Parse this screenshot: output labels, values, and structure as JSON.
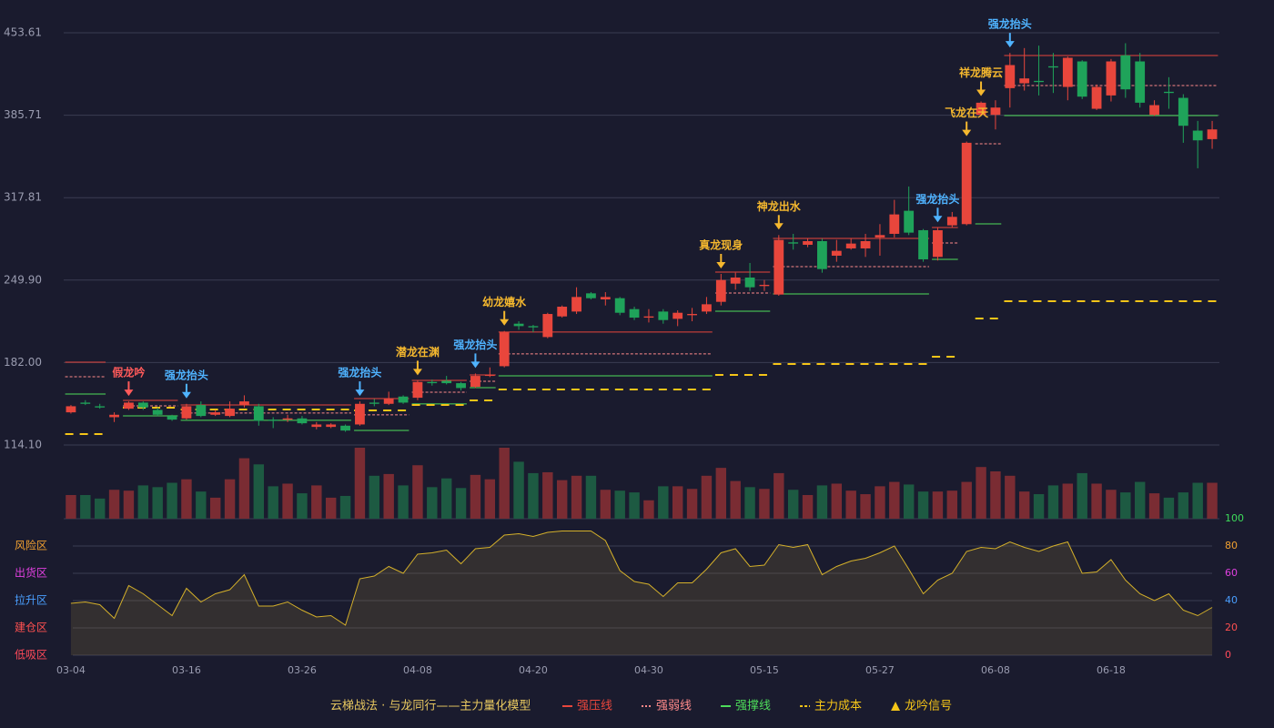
{
  "chart_data": {
    "type": "candlestick",
    "categories": [
      "03-04",
      null,
      null,
      null,
      null,
      null,
      null,
      null,
      "03-16",
      null,
      null,
      null,
      null,
      null,
      null,
      null,
      "03-26",
      null,
      null,
      null,
      null,
      null,
      null,
      null,
      "04-08",
      null,
      null,
      null,
      null,
      null,
      null,
      null,
      "04-20",
      null,
      null,
      null,
      null,
      null,
      null,
      null,
      "04-30",
      null,
      null,
      null,
      null,
      null,
      null,
      null,
      "05-15",
      null,
      null,
      null,
      null,
      null,
      null,
      null,
      "05-27",
      null,
      null,
      null,
      null,
      null,
      null,
      null,
      "06-08",
      null,
      null,
      null,
      null,
      null,
      null,
      null,
      "06-18",
      null,
      null,
      null,
      null,
      null,
      null,
      null
    ],
    "open": [
      141,
      149,
      146,
      137,
      144,
      149,
      143,
      138,
      136,
      147,
      139,
      138,
      147,
      146,
      135,
      135,
      136,
      129,
      129,
      130,
      131,
      149,
      148,
      154,
      153,
      166,
      167,
      165,
      162,
      171,
      179,
      214,
      212,
      203,
      220,
      224,
      239,
      234,
      235,
      226,
      219,
      224,
      218,
      221,
      224,
      232,
      247,
      252,
      245,
      238,
      281,
      279,
      282,
      270,
      276,
      276,
      285,
      288,
      307,
      291,
      269,
      295,
      296,
      386,
      386,
      408,
      412,
      414,
      426,
      409,
      430,
      391,
      402,
      435,
      430,
      386,
      405,
      400,
      373,
      366
    ],
    "close": [
      146,
      148,
      145,
      139,
      149,
      145,
      139,
      135,
      146,
      138,
      141,
      144,
      150,
      134,
      134,
      136,
      132,
      131,
      131,
      126,
      148,
      148,
      152,
      149,
      166,
      165,
      165,
      161,
      171,
      172,
      207,
      212,
      211,
      222,
      228,
      236,
      235,
      236,
      223,
      219,
      220,
      217,
      223,
      222,
      230,
      250,
      252,
      244,
      246,
      283,
      280,
      282,
      259,
      274,
      280,
      282,
      287,
      304,
      289,
      267,
      291,
      302,
      363,
      396,
      392,
      427,
      416,
      413,
      425,
      433,
      401,
      409,
      430,
      407,
      396,
      394,
      404,
      377,
      365,
      374
    ],
    "high": [
      147,
      151,
      148,
      141,
      150,
      150,
      145,
      139,
      148,
      150,
      143,
      150,
      155,
      148,
      137,
      139,
      138,
      133,
      132,
      131,
      150,
      152,
      158,
      155,
      167,
      168,
      171,
      166,
      173,
      178,
      208,
      216,
      213,
      223,
      229,
      244,
      240,
      240,
      236,
      228,
      226,
      226,
      225,
      227,
      236,
      255,
      256,
      264,
      250,
      287,
      288,
      284,
      284,
      283,
      284,
      288,
      296,
      316,
      327,
      292,
      293,
      306,
      364,
      397,
      398,
      437,
      441,
      443,
      437,
      434,
      431,
      411,
      432,
      445,
      437,
      398,
      417,
      403,
      381,
      381
    ],
    "low": [
      140,
      147,
      144,
      133,
      143,
      143,
      138,
      134,
      135,
      137,
      138,
      137,
      145,
      130,
      128,
      133,
      131,
      127,
      128,
      125,
      130,
      146,
      147,
      148,
      151,
      163,
      164,
      159,
      161,
      170,
      178,
      209,
      207,
      202,
      219,
      222,
      234,
      229,
      221,
      217,
      215,
      214,
      212,
      216,
      222,
      229,
      242,
      241,
      241,
      237,
      275,
      277,
      256,
      265,
      275,
      269,
      270,
      285,
      287,
      265,
      266,
      293,
      295,
      385,
      374,
      392,
      406,
      402,
      404,
      398,
      399,
      390,
      397,
      400,
      392,
      385,
      391,
      363,
      342,
      358
    ],
    "up_color": "#e8463c",
    "down_color": "#1fa35a",
    "volume": [
      27,
      27,
      23,
      33,
      32,
      38,
      36,
      41,
      45,
      31,
      24,
      45,
      69,
      62,
      37,
      40,
      29,
      38,
      24,
      26,
      81,
      49,
      51,
      38,
      61,
      36,
      46,
      35,
      50,
      45,
      81,
      65,
      52,
      53,
      44,
      49,
      49,
      33,
      32,
      30,
      21,
      37,
      37,
      34,
      49,
      58,
      43,
      36,
      34,
      52,
      33,
      27,
      38,
      40,
      32,
      28,
      37,
      42,
      39,
      31,
      31,
      32,
      42,
      59,
      54,
      49,
      31,
      28,
      38,
      40,
      52,
      40,
      33,
      30,
      42,
      29,
      24,
      30,
      41,
      41
    ],
    "volume_up_color": "#7a2c33",
    "volume_down_color": "#1d5a42",
    "ylim": [
      114.1,
      453.61
    ],
    "yticks": [
      {
        "value": 114.1,
        "label": "114.10"
      },
      {
        "value": 182.0,
        "label": "182.00"
      },
      {
        "value": 249.9,
        "label": "249.90"
      },
      317.81,
      385.71,
      453.61
    ],
    "grid": true,
    "levels": [
      {
        "name": "强压线",
        "color": "#e8463c",
        "style": "solid",
        "segments": [
          {
            "from": 0,
            "to": 2,
            "value": 182.3
          },
          {
            "from": 4,
            "to": 7,
            "value": 150.8
          },
          {
            "from": 8,
            "to": 19,
            "value": 147.1
          },
          {
            "from": 20,
            "to": 23,
            "value": 152.3
          },
          {
            "from": 24,
            "to": 27,
            "value": 167.3
          },
          {
            "from": 28,
            "to": 29,
            "value": 171.8
          },
          {
            "from": 30,
            "to": 44,
            "value": 207.1
          },
          {
            "from": 45,
            "to": 48,
            "value": 256.5
          },
          {
            "from": 49,
            "to": 59,
            "value": 284.2
          },
          {
            "from": 60,
            "to": 61,
            "value": 293.2
          },
          {
            "from": 65,
            "to": 79,
            "value": 434.9
          }
        ]
      },
      {
        "name": "强弱线",
        "color": "#ff8a8a",
        "style": "dotted",
        "segments": [
          {
            "from": 0,
            "to": 2,
            "value": 170.3
          },
          {
            "from": 4,
            "to": 7,
            "value": 146.3
          },
          {
            "from": 8,
            "to": 19,
            "value": 140.4
          },
          {
            "from": 20,
            "to": 23,
            "value": 138.9
          },
          {
            "from": 24,
            "to": 27,
            "value": 157.6
          },
          {
            "from": 28,
            "to": 29,
            "value": 166.6
          },
          {
            "from": 30,
            "to": 44,
            "value": 189.1
          },
          {
            "from": 45,
            "to": 48,
            "value": 239.3
          },
          {
            "from": 49,
            "to": 59,
            "value": 261.0
          },
          {
            "from": 60,
            "to": 61,
            "value": 280.5
          },
          {
            "from": 63,
            "to": 64,
            "value": 362.2
          },
          {
            "from": 65,
            "to": 79,
            "value": 410.1
          }
        ]
      },
      {
        "name": "强撑线",
        "color": "#4ddc5a",
        "style": "solid",
        "segments": [
          {
            "from": 0,
            "to": 2,
            "value": 156.1
          },
          {
            "from": 4,
            "to": 7,
            "value": 138.1
          },
          {
            "from": 8,
            "to": 19,
            "value": 134.4
          },
          {
            "from": 20,
            "to": 23,
            "value": 126.1
          },
          {
            "from": 24,
            "to": 27,
            "value": 147.9
          },
          {
            "from": 28,
            "to": 29,
            "value": 161.3
          },
          {
            "from": 30,
            "to": 44,
            "value": 171.1
          },
          {
            "from": 45,
            "to": 48,
            "value": 224.3
          },
          {
            "from": 49,
            "to": 59,
            "value": 238.5
          },
          {
            "from": 60,
            "to": 61,
            "value": 267.0
          },
          {
            "from": 63,
            "to": 64,
            "value": 296.2
          },
          {
            "from": 65,
            "to": 79,
            "value": 385.4
          }
        ]
      },
      {
        "name": "主力成本",
        "color": "#f5c518",
        "style": "dashed",
        "segments": [
          {
            "from": 0,
            "to": 2,
            "value": 123.1
          },
          {
            "from": 4,
            "to": 7,
            "value": 144.8
          },
          {
            "from": 8,
            "to": 19,
            "value": 143.3
          },
          {
            "from": 20,
            "to": 23,
            "value": 142.6
          },
          {
            "from": 24,
            "to": 27,
            "value": 147.1
          },
          {
            "from": 28,
            "to": 29,
            "value": 150.8
          },
          {
            "from": 30,
            "to": 44,
            "value": 159.8
          },
          {
            "from": 45,
            "to": 48,
            "value": 171.8
          },
          {
            "from": 49,
            "to": 59,
            "value": 180.8
          },
          {
            "from": 60,
            "to": 61,
            "value": 186.8
          },
          {
            "from": 63,
            "to": 64,
            "value": 218.3
          },
          {
            "from": 65,
            "to": 79,
            "value": 232.5
          }
        ]
      }
    ],
    "signals": [
      {
        "label": "假龙吟",
        "color": "#ff5a5a",
        "candle": 4
      },
      {
        "label": "强龙抬头",
        "color": "#4fb3ff",
        "candle": 8
      },
      {
        "label": "强龙抬头",
        "color": "#4fb3ff",
        "candle": 20
      },
      {
        "label": "潜龙在渊",
        "color": "#f5b82e",
        "candle": 24
      },
      {
        "label": "强龙抬头",
        "color": "#4fb3ff",
        "candle": 28
      },
      {
        "label": "幼龙嬉水",
        "color": "#f5b82e",
        "candle": 30
      },
      {
        "label": "真龙现身",
        "color": "#f5b82e",
        "candle": 45
      },
      {
        "label": "神龙出水",
        "color": "#f5b82e",
        "candle": 49
      },
      {
        "label": "强龙抬头",
        "color": "#4fb3ff",
        "candle": 60
      },
      {
        "label": "飞龙在天",
        "color": "#f5b82e",
        "candle": 62
      },
      {
        "label": "祥龙腾云",
        "color": "#f5b82e",
        "candle": 63
      },
      {
        "label": "强龙抬头",
        "color": "#4fb3ff",
        "candle": 65
      }
    ],
    "oscillator": {
      "values": [
        38,
        39,
        37,
        27,
        51,
        45,
        37,
        29,
        49,
        39,
        45,
        48,
        59,
        36,
        36,
        39,
        33,
        28,
        29,
        22,
        56,
        58,
        65,
        60,
        74,
        75,
        77,
        67,
        78,
        79,
        88,
        89,
        87,
        90,
        91,
        91,
        91,
        84,
        62,
        54,
        52,
        43,
        53,
        53,
        63,
        75,
        78,
        65,
        66,
        81,
        79,
        81,
        59,
        65,
        69,
        71,
        75,
        80,
        63,
        45,
        55,
        60,
        76,
        79,
        78,
        83,
        79,
        76,
        80,
        83,
        60,
        61,
        70,
        55,
        45,
        40,
        45,
        33,
        29,
        35
      ],
      "color": "#d4b02a",
      "ylim": [
        0,
        100
      ],
      "yticks": [
        0,
        20,
        40,
        60,
        80,
        100
      ],
      "tick_colors": [
        "#ff4a5a",
        "#ff5050",
        "#4a9fff",
        "#e040e0",
        "#f0a030",
        "#3ddc5a"
      ],
      "zones": [
        {
          "label": "风险区",
          "value": 80,
          "color": "#f0a030"
        },
        {
          "label": "出货区",
          "value": 60,
          "color": "#e040e0"
        },
        {
          "label": "拉升区",
          "value": 40,
          "color": "#4a9fff"
        },
        {
          "label": "建仓区",
          "value": 20,
          "color": "#ff5050"
        },
        {
          "label": "低吸区",
          "value": 0,
          "color": "#ff4a5a"
        }
      ]
    },
    "legend_title": "云梯战法 · 与龙同行——主力量化模型",
    "signal_legend": {
      "label": "龙吟信号",
      "color": "#f5c518"
    }
  }
}
